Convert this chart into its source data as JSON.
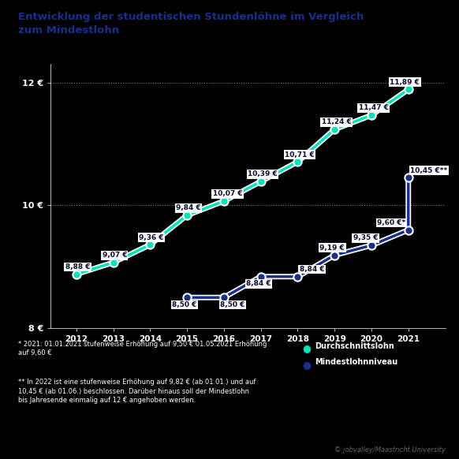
{
  "title": "Entwicklung der studentischen Stundenlöhne im Vergleich\nzum Mindestlohn",
  "years": [
    2012,
    2013,
    2014,
    2015,
    2016,
    2017,
    2018,
    2019,
    2020,
    2021
  ],
  "avg_wage": [
    8.88,
    9.07,
    9.36,
    9.84,
    10.07,
    10.39,
    10.71,
    11.24,
    11.47,
    11.89
  ],
  "min_years": [
    2015,
    2016,
    2017,
    2018,
    2019,
    2020,
    2021,
    2021
  ],
  "min_vals": [
    8.5,
    8.5,
    8.84,
    8.84,
    9.19,
    9.35,
    9.6,
    10.45
  ],
  "avg_labels": [
    "8,88 €",
    "9,07 €",
    "9,36 €",
    "9,84 €",
    "10,07 €",
    "10,39 €",
    "10,71 €",
    "11,24 €",
    "11,47 €",
    "11,89 €"
  ],
  "min_label_data": [
    [
      2015,
      8.5,
      "8,50 €"
    ],
    [
      2016,
      8.5,
      "8,50 €"
    ],
    [
      2017,
      8.84,
      "8,84 €"
    ],
    [
      2018,
      8.84,
      "8,84 €"
    ],
    [
      2019,
      9.19,
      "9,19 €"
    ],
    [
      2020,
      9.35,
      "9,35 €"
    ],
    [
      2021,
      9.6,
      "9,60 €*"
    ],
    [
      2021,
      10.45,
      "10,45 €**"
    ]
  ],
  "ylim": [
    8.0,
    12.3
  ],
  "yticks": [
    8,
    10,
    12
  ],
  "ytick_labels": [
    "8 €",
    "10 €",
    "12 €"
  ],
  "bg_color": "#000000",
  "avg_color": "#00e5b8",
  "min_color": "#1a2f8c",
  "title_color": "#1a2f8c",
  "grid_color": "#ffffff",
  "tick_color": "#ffffff",
  "footnote1": "* 2021: 01.01.2021 stufenweise Erhöhung auf 9,50 € 01.05.2021 Erhöhung\nauf 9,60 €",
  "footnote2": "** In 2022 ist eine stufenweise Erhöhung auf 9,82 € (ab 01.01.) und auf\n10,45 € (ab 01.06.) beschlossen. Darüber hinaus soll der Mindestlohn\nbis Jahresende einmalig auf 12 € angehoben werden.",
  "legend_avg": "Durchschnittslohn",
  "legend_min": "Mindestlohnniveau",
  "copyright": "© jobvalley/Maastricht University"
}
